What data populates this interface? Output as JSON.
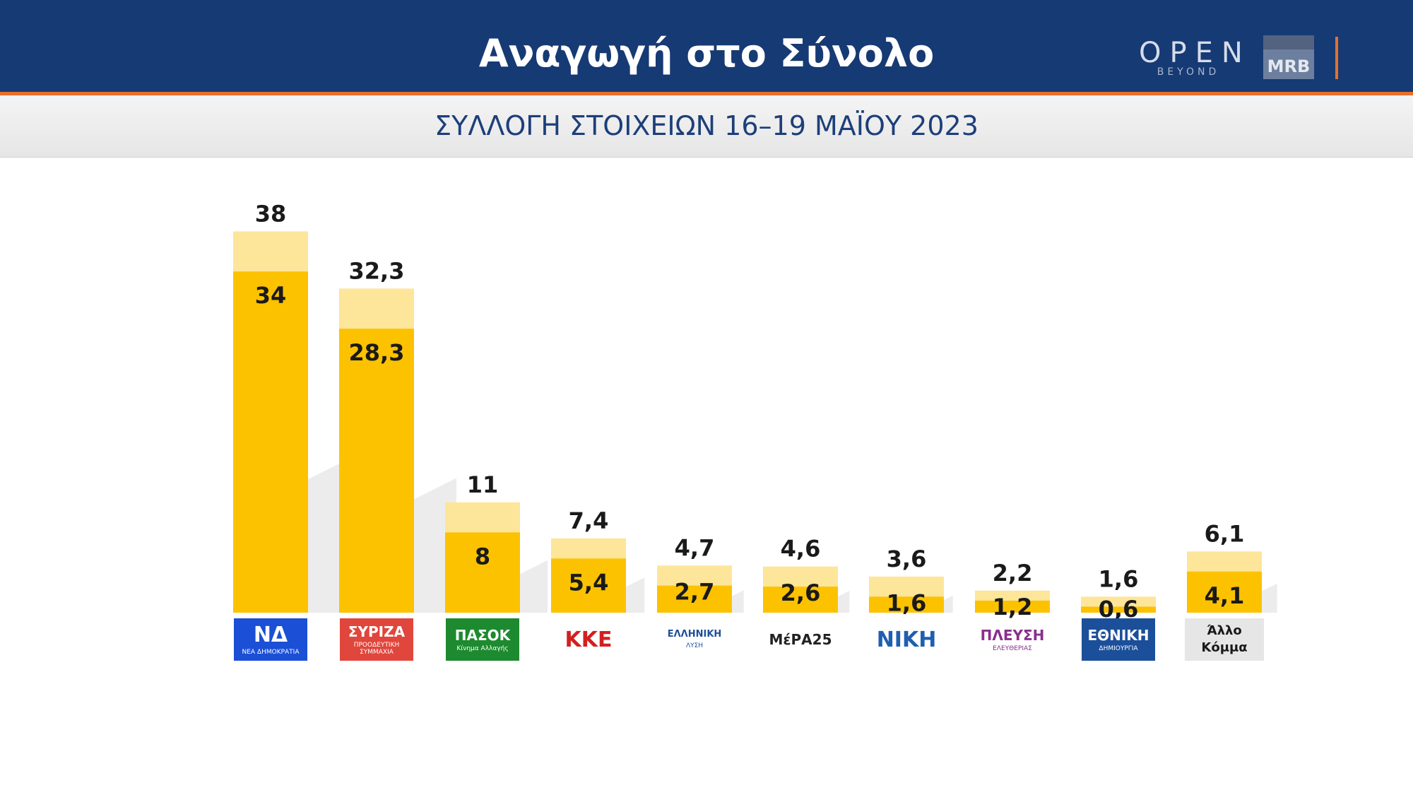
{
  "header": {
    "title": "Αναγωγή στο Σύνολο"
  },
  "branding": {
    "open_label": "OPEN",
    "open_sub": "BEYOND",
    "mrb_label": "MRB"
  },
  "subtitle": "ΣΥΛΛΟΓΗ ΣΤΟΙΧΕΙΩΝ 16–19 ΜΑΪΟΥ 2023",
  "colors": {
    "header_bg": "#163a73",
    "accent": "#e8702a",
    "bar_inner": "#fcc200",
    "bar_outer": "#fde59a",
    "label": "#1a1a1a"
  },
  "chart_data": {
    "type": "bar",
    "categories": [
      "ΝΔ",
      "ΣΥΡΙΖΑ",
      "ΠΑΣΟΚ",
      "ΚΚΕ",
      "ΕΛΛΗΝΙΚΗ ΛΥΣΗ",
      "ΜέΡΑ25",
      "ΝΙΚΗ",
      "ΠΛΕΥΣΗ ΕΛΕΥΘΕΡΙΑΣ",
      "ΕΘΝΙΚΗ ΔΗΜΙΟΥΡΓΙΑ",
      "Άλλο Κόμμα"
    ],
    "series": [
      {
        "values": [
          38,
          32.3,
          11,
          7.4,
          4.7,
          4.6,
          3.6,
          2.2,
          1.6,
          6.1
        ],
        "labels": [
          "38",
          "32,3",
          "11",
          "7,4",
          "4,7",
          "4,6",
          "3,6",
          "2,2",
          "1,6",
          "6,1"
        ]
      },
      {
        "values": [
          34,
          28.3,
          8,
          5.4,
          2.7,
          2.6,
          1.6,
          1.2,
          0.6,
          4.1
        ],
        "labels": [
          "34",
          "28,3",
          "8",
          "5,4",
          "2,7",
          "2,6",
          "1,6",
          "1,2",
          "0,6",
          "4,1"
        ]
      }
    ],
    "ylim": [
      0,
      40
    ],
    "grid": false,
    "legend": "none"
  },
  "party_logos": [
    {
      "icon": "nd-logo",
      "text": "ΝΔ",
      "sub": "ΝΕΑ ΔΗΜΟΚΡΑΤΙΑ",
      "bg": "#1a4fd6",
      "fg": "#ffffff"
    },
    {
      "icon": "syriza-logo",
      "text": "ΣΥΡΙΖΑ",
      "sub": "ΠΡΟΟΔΕΥΤΙΚΗ ΣΥΜΜΑΧΙΑ",
      "bg": "#e0463c",
      "fg": "#ffffff"
    },
    {
      "icon": "pasok-logo",
      "text": "ΠΑΣΟΚ",
      "sub": "Κίνημα Αλλαγής",
      "bg": "#1d8a2f",
      "fg": "#ffffff"
    },
    {
      "icon": "kke-logo",
      "text": "ΚΚΕ",
      "sub": "",
      "bg": "#ffffff",
      "fg": "#d2201f"
    },
    {
      "icon": "elliniki-lysi-logo",
      "text": "ΕΛΛΗΝΙΚΗ",
      "sub": "ΛΥΣΗ",
      "bg": "#ffffff",
      "fg": "#1d4f9c"
    },
    {
      "icon": "mera25-logo",
      "text": "ΜέΡΑ25",
      "sub": "",
      "bg": "#ffffff",
      "fg": "#222222"
    },
    {
      "icon": "niki-logo",
      "text": "ΝΙΚΗ",
      "sub": "",
      "bg": "#ffffff",
      "fg": "#1f5fb0"
    },
    {
      "icon": "plefsi-logo",
      "text": "ΠΛΕΥΣΗ",
      "sub": "ΕΛΕΥΘΕΡΙΑΣ",
      "bg": "#ffffff",
      "fg": "#8a2e8e"
    },
    {
      "icon": "ethniki-dimiourgia-logo",
      "text": "ΕΘΝΙΚΗ",
      "sub": "ΔΗΜΙΟΥΡΓΙΑ",
      "bg": "#1c4f9a",
      "fg": "#ffffff"
    },
    {
      "icon": "allo-komma-box",
      "text": "Άλλο",
      "sub": "Κόμμα",
      "bg": "#e6e6e6",
      "fg": "#1a1a1a"
    }
  ]
}
